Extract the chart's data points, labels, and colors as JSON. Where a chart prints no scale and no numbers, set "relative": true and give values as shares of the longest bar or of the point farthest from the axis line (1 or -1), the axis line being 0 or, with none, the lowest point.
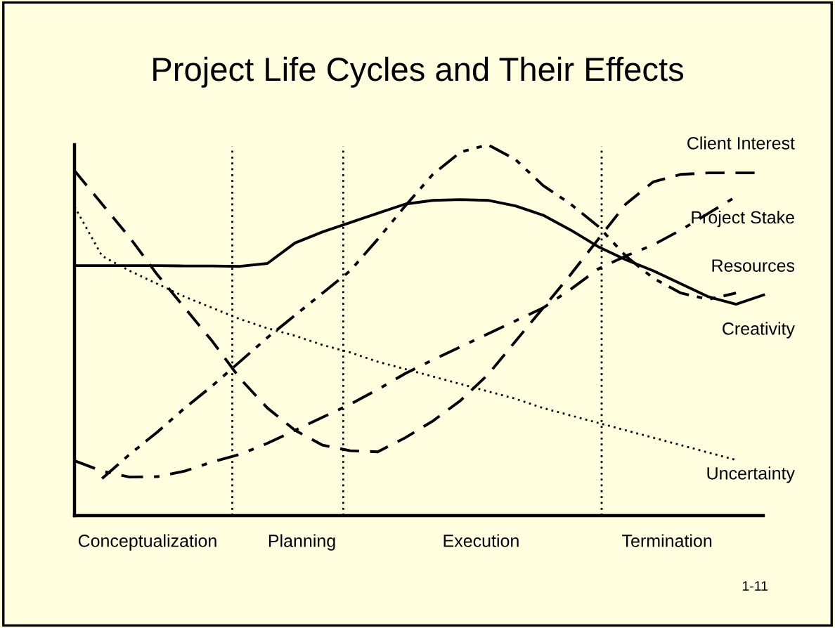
{
  "chart_data": {
    "type": "line",
    "title": "Project Life Cycles and Their Effects",
    "relative": true,
    "categories": [
      null,
      null,
      null,
      null,
      null,
      null,
      null,
      null,
      null,
      null,
      null,
      null,
      null,
      null,
      null,
      null,
      null,
      null,
      null,
      null,
      null,
      null,
      null,
      null,
      null,
      null
    ],
    "series": [
      {
        "name": "Client Interest",
        "color": "#000000",
        "line_style": "dashed",
        "values": [
          0.93,
          0.84,
          0.75,
          0.65,
          0.56,
          0.47,
          0.37,
          0.29,
          0.23,
          0.19,
          0.175,
          0.172,
          0.21,
          0.255,
          0.31,
          0.38,
          0.47,
          0.56,
          0.65,
          0.745,
          0.84,
          0.9,
          0.92,
          0.924,
          0.924,
          0.924
        ]
      },
      {
        "name": "Project Stake",
        "color": "#000000",
        "line_style": "dashdot",
        "values": [
          0.148,
          0.12,
          0.104,
          0.105,
          0.12,
          0.145,
          0.165,
          0.195,
          0.23,
          0.265,
          0.3,
          0.34,
          0.383,
          0.42,
          0.455,
          0.49,
          0.525,
          0.56,
          0.61,
          0.665,
          0.7,
          0.73,
          0.77,
          0.815,
          0.86,
          null
        ]
      },
      {
        "name": "Resources",
        "color": "#000000",
        "line_style": "dashdotdot",
        "values": [
          null,
          0.1,
          0.165,
          0.225,
          0.29,
          0.35,
          0.415,
          0.48,
          0.54,
          0.6,
          0.66,
          0.745,
          0.835,
          0.92,
          0.98,
          1.0,
          0.96,
          0.89,
          0.84,
          0.78,
          0.7,
          0.64,
          0.6,
          0.583,
          0.6,
          null
        ]
      },
      {
        "name": "Creativity",
        "color": "#000000",
        "line_style": "solid",
        "values": [
          0.674,
          0.674,
          0.674,
          0.674,
          0.673,
          0.673,
          0.672,
          0.68,
          0.735,
          0.765,
          0.79,
          0.815,
          0.84,
          0.85,
          0.852,
          0.85,
          0.835,
          0.81,
          0.77,
          0.725,
          0.69,
          0.66,
          0.625,
          0.59,
          0.57,
          0.595
        ]
      },
      {
        "name": "Uncertainty",
        "color": "#000000",
        "line_style": "dotted",
        "values": [
          0.833,
          0.7,
          0.66,
          0.625,
          0.59,
          0.56,
          0.53,
          0.505,
          0.485,
          0.46,
          0.44,
          0.415,
          0.395,
          0.375,
          0.355,
          0.335,
          0.315,
          0.29,
          0.27,
          0.25,
          0.23,
          0.21,
          0.19,
          0.17,
          0.15,
          null
        ]
      }
    ],
    "annotations": [
      "Conceptualization",
      "Planning",
      "Execution",
      "Termination",
      "1-11"
    ],
    "grid": false
  }
}
